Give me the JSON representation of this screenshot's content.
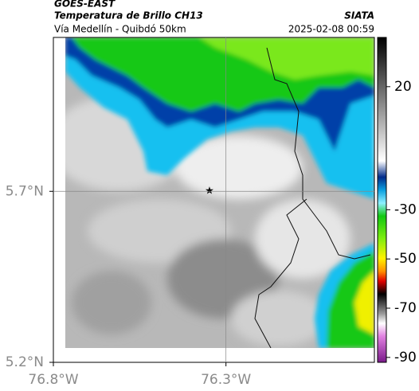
{
  "header": {
    "title": "GOES-EAST",
    "subtitle": "Temperatura de Brillo CH13",
    "region": "Vía Medellín - Quibdó 50km",
    "source": "SIATA",
    "timestamp": "2025-02-08 00:59"
  },
  "map": {
    "xlim": [
      -76.8,
      -75.87
    ],
    "ylim": [
      5.2,
      6.15
    ],
    "xticks": [
      {
        "value": -76.8,
        "label": "76.8°W"
      },
      {
        "value": -76.3,
        "label": "76.3°W"
      }
    ],
    "yticks": [
      {
        "value": 5.2,
        "label": "5.2°N"
      },
      {
        "value": 5.7,
        "label": "5.7°N"
      }
    ],
    "grid": true
  },
  "colorbar": {
    "lim": [
      -92,
      40
    ],
    "ticks": [
      20,
      -30,
      -50,
      -70,
      -90
    ]
  }
}
